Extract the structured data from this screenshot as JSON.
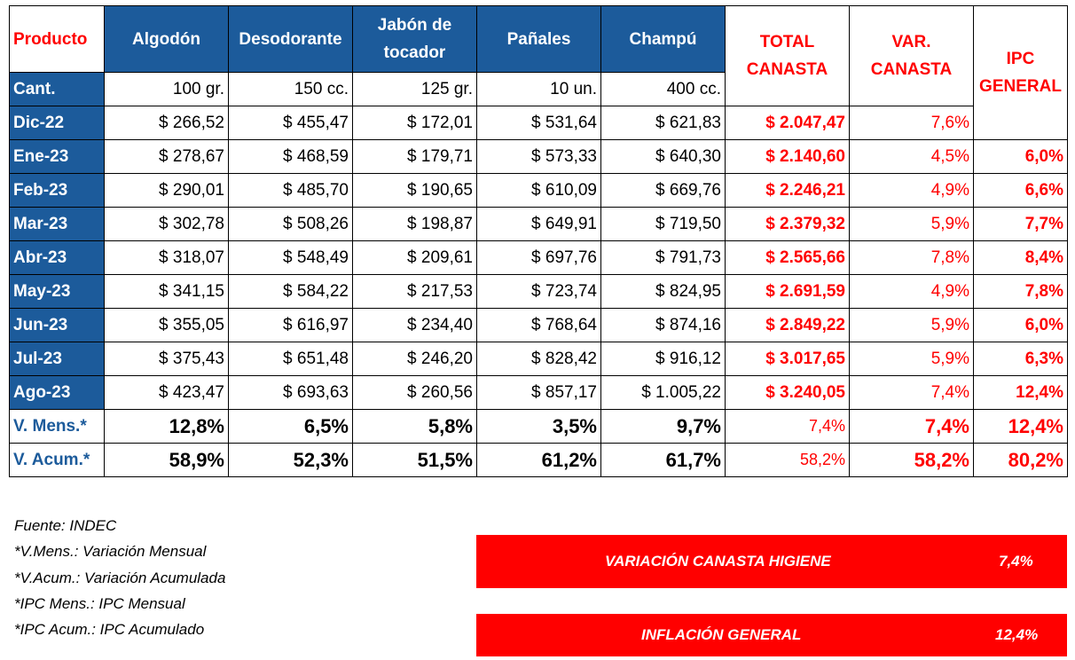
{
  "table": {
    "header": {
      "product": "Producto",
      "columns": [
        "Algodón",
        "Desodorante",
        "Jabón de tocador",
        "Pañales",
        "Champú"
      ],
      "total": "TOTAL CANASTA",
      "var": "VAR. CANASTA",
      "ipc": "IPC GENERAL"
    },
    "quantity": {
      "label": "Cant.",
      "values": [
        "100 gr.",
        "150 cc.",
        "125 gr.",
        "10 un.",
        "400 cc."
      ]
    },
    "rows": [
      {
        "label": "Dic-22",
        "values": [
          "$ 266,52",
          "$ 455,47",
          "$ 172,01",
          "$ 531,64",
          "$ 621,83"
        ],
        "total": "$ 2.047,47",
        "var": "7,6%"
      },
      {
        "label": "Ene-23",
        "values": [
          "$ 278,67",
          "$ 468,59",
          "$ 179,71",
          "$ 573,33",
          "$ 640,30"
        ],
        "total": "$ 2.140,60",
        "var": "4,5%",
        "ipc": "6,0%"
      },
      {
        "label": "Feb-23",
        "values": [
          "$ 290,01",
          "$ 485,70",
          "$ 190,65",
          "$ 610,09",
          "$ 669,76"
        ],
        "total": "$ 2.246,21",
        "var": "4,9%",
        "ipc": "6,6%"
      },
      {
        "label": "Mar-23",
        "values": [
          "$ 302,78",
          "$ 508,26",
          "$ 198,87",
          "$ 649,91",
          "$ 719,50"
        ],
        "total": "$ 2.379,32",
        "var": "5,9%",
        "ipc": "7,7%"
      },
      {
        "label": "Abr-23",
        "values": [
          "$ 318,07",
          "$ 548,49",
          "$ 209,61",
          "$ 697,76",
          "$ 791,73"
        ],
        "total": "$ 2.565,66",
        "var": "7,8%",
        "ipc": "8,4%"
      },
      {
        "label": "May-23",
        "values": [
          "$ 341,15",
          "$ 584,22",
          "$ 217,53",
          "$ 723,74",
          "$ 824,95"
        ],
        "total": "$ 2.691,59",
        "var": "4,9%",
        "ipc": "7,8%"
      },
      {
        "label": "Jun-23",
        "values": [
          "$ 355,05",
          "$ 616,97",
          "$ 234,40",
          "$ 768,64",
          "$ 874,16"
        ],
        "total": "$ 2.849,22",
        "var": "5,9%",
        "ipc": "6,0%"
      },
      {
        "label": "Jul-23",
        "values": [
          "$ 375,43",
          "$ 651,48",
          "$ 246,20",
          "$ 828,42",
          "$ 916,12"
        ],
        "total": "$ 3.017,65",
        "var": "5,9%",
        "ipc": "6,3%"
      },
      {
        "label": "Ago-23",
        "values": [
          "$ 423,47",
          "$ 693,63",
          "$ 260,56",
          "$ 857,17",
          "$ 1.005,22"
        ],
        "total": "$ 3.240,05",
        "var": "7,4%",
        "ipc": "12,4%"
      }
    ],
    "summary": [
      {
        "label": "V. Mens.*",
        "values": [
          "12,8%",
          "6,5%",
          "5,8%",
          "3,5%",
          "9,7%"
        ],
        "total": "7,4%",
        "var": "7,4%",
        "ipc": "12,4%"
      },
      {
        "label": "V. Acum.*",
        "values": [
          "58,9%",
          "52,3%",
          "51,5%",
          "61,2%",
          "61,7%"
        ],
        "total": "58,2%",
        "var": "58,2%",
        "ipc": "80,2%"
      }
    ]
  },
  "notes": [
    "Fuente: INDEC",
    "*V.Mens.: Variación Mensual",
    "*V.Acum.: Variación Acumulada",
    "*IPC Mens.: IPC Mensual",
    "*IPC Acum.: IPC Acumulado"
  ],
  "boxes": [
    {
      "label": "VARIACIÓN CANASTA HIGIENE",
      "value": "7,4%"
    },
    {
      "label": "INFLACIÓN GENERAL",
      "value": "12,4%"
    }
  ]
}
